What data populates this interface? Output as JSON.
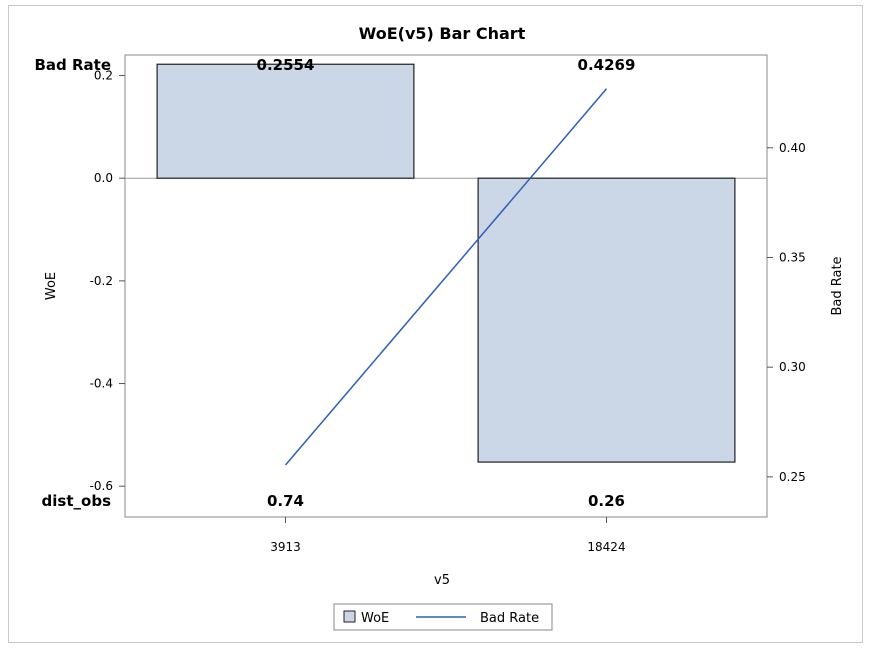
{
  "chart_data": {
    "type": "bar",
    "title": "WoE(v5) Bar Chart",
    "xlabel": "v5",
    "ylabel": "WoE",
    "y2label": "Bad Rate",
    "categories": [
      "3913",
      "18424"
    ],
    "series": [
      {
        "name": "WoE",
        "kind": "bar",
        "axis": "left",
        "values": [
          0.222,
          -0.553
        ],
        "color": "#cbd6e6",
        "edge": "#222222"
      },
      {
        "name": "Bad Rate",
        "kind": "line",
        "axis": "right",
        "values": [
          0.2554,
          0.4269
        ],
        "color": "#2f5fb4"
      }
    ],
    "ylim": [
      -0.66,
      0.24
    ],
    "yticks": [
      0.2,
      0.0,
      -0.2,
      -0.4,
      -0.6
    ],
    "ytick_labels": [
      "0.2",
      "0.0",
      "-0.2",
      "-0.4",
      "-0.6"
    ],
    "y2lim": [
      0.2317,
      0.4423
    ],
    "y2ticks": [
      0.4,
      0.35,
      0.3,
      0.25
    ],
    "y2tick_labels": [
      "0.40",
      "0.35",
      "0.30",
      "0.25"
    ],
    "top_row": {
      "label": "Bad Rate",
      "values": [
        "0.2554",
        "0.4269"
      ]
    },
    "bottom_row": {
      "label": "dist_obs",
      "values": [
        "0.74",
        "0.26"
      ]
    },
    "legend": {
      "placement": "bottom-center",
      "items": [
        "WoE",
        "Bad Rate"
      ]
    },
    "grid": false,
    "reference_line_y": 0.0
  }
}
